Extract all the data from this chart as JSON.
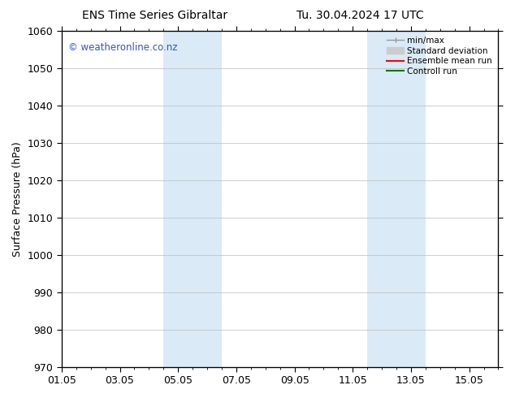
{
  "title_left": "ENS Time Series Gibraltar",
  "title_right": "Tu. 30.04.2024 17 UTC",
  "ylabel": "Surface Pressure (hPa)",
  "ylim": [
    970,
    1060
  ],
  "yticks_major": [
    970,
    980,
    990,
    1000,
    1010,
    1020,
    1030,
    1040,
    1050,
    1060
  ],
  "xtick_labels": [
    "01.05",
    "03.05",
    "05.05",
    "07.05",
    "09.05",
    "11.05",
    "13.05",
    "15.05"
  ],
  "xtick_positions": [
    0,
    2,
    4,
    6,
    8,
    10,
    12,
    14
  ],
  "xlim": [
    0,
    15
  ],
  "shaded_bands": [
    {
      "x_start": 3.5,
      "x_end": 5.5,
      "color": "#daeaf7"
    },
    {
      "x_start": 10.5,
      "x_end": 12.5,
      "color": "#daeaf7"
    }
  ],
  "watermark_text": "© weatheronline.co.nz",
  "watermark_color": "#3355cc",
  "bg_color": "#ffffff",
  "grid_color": "#bbbbbb",
  "font_size": 9,
  "title_fontsize": 10,
  "legend_minmax_color": "#999999",
  "legend_std_color": "#cccccc",
  "legend_ensemble_color": "#ff0000",
  "legend_control_color": "#007700"
}
